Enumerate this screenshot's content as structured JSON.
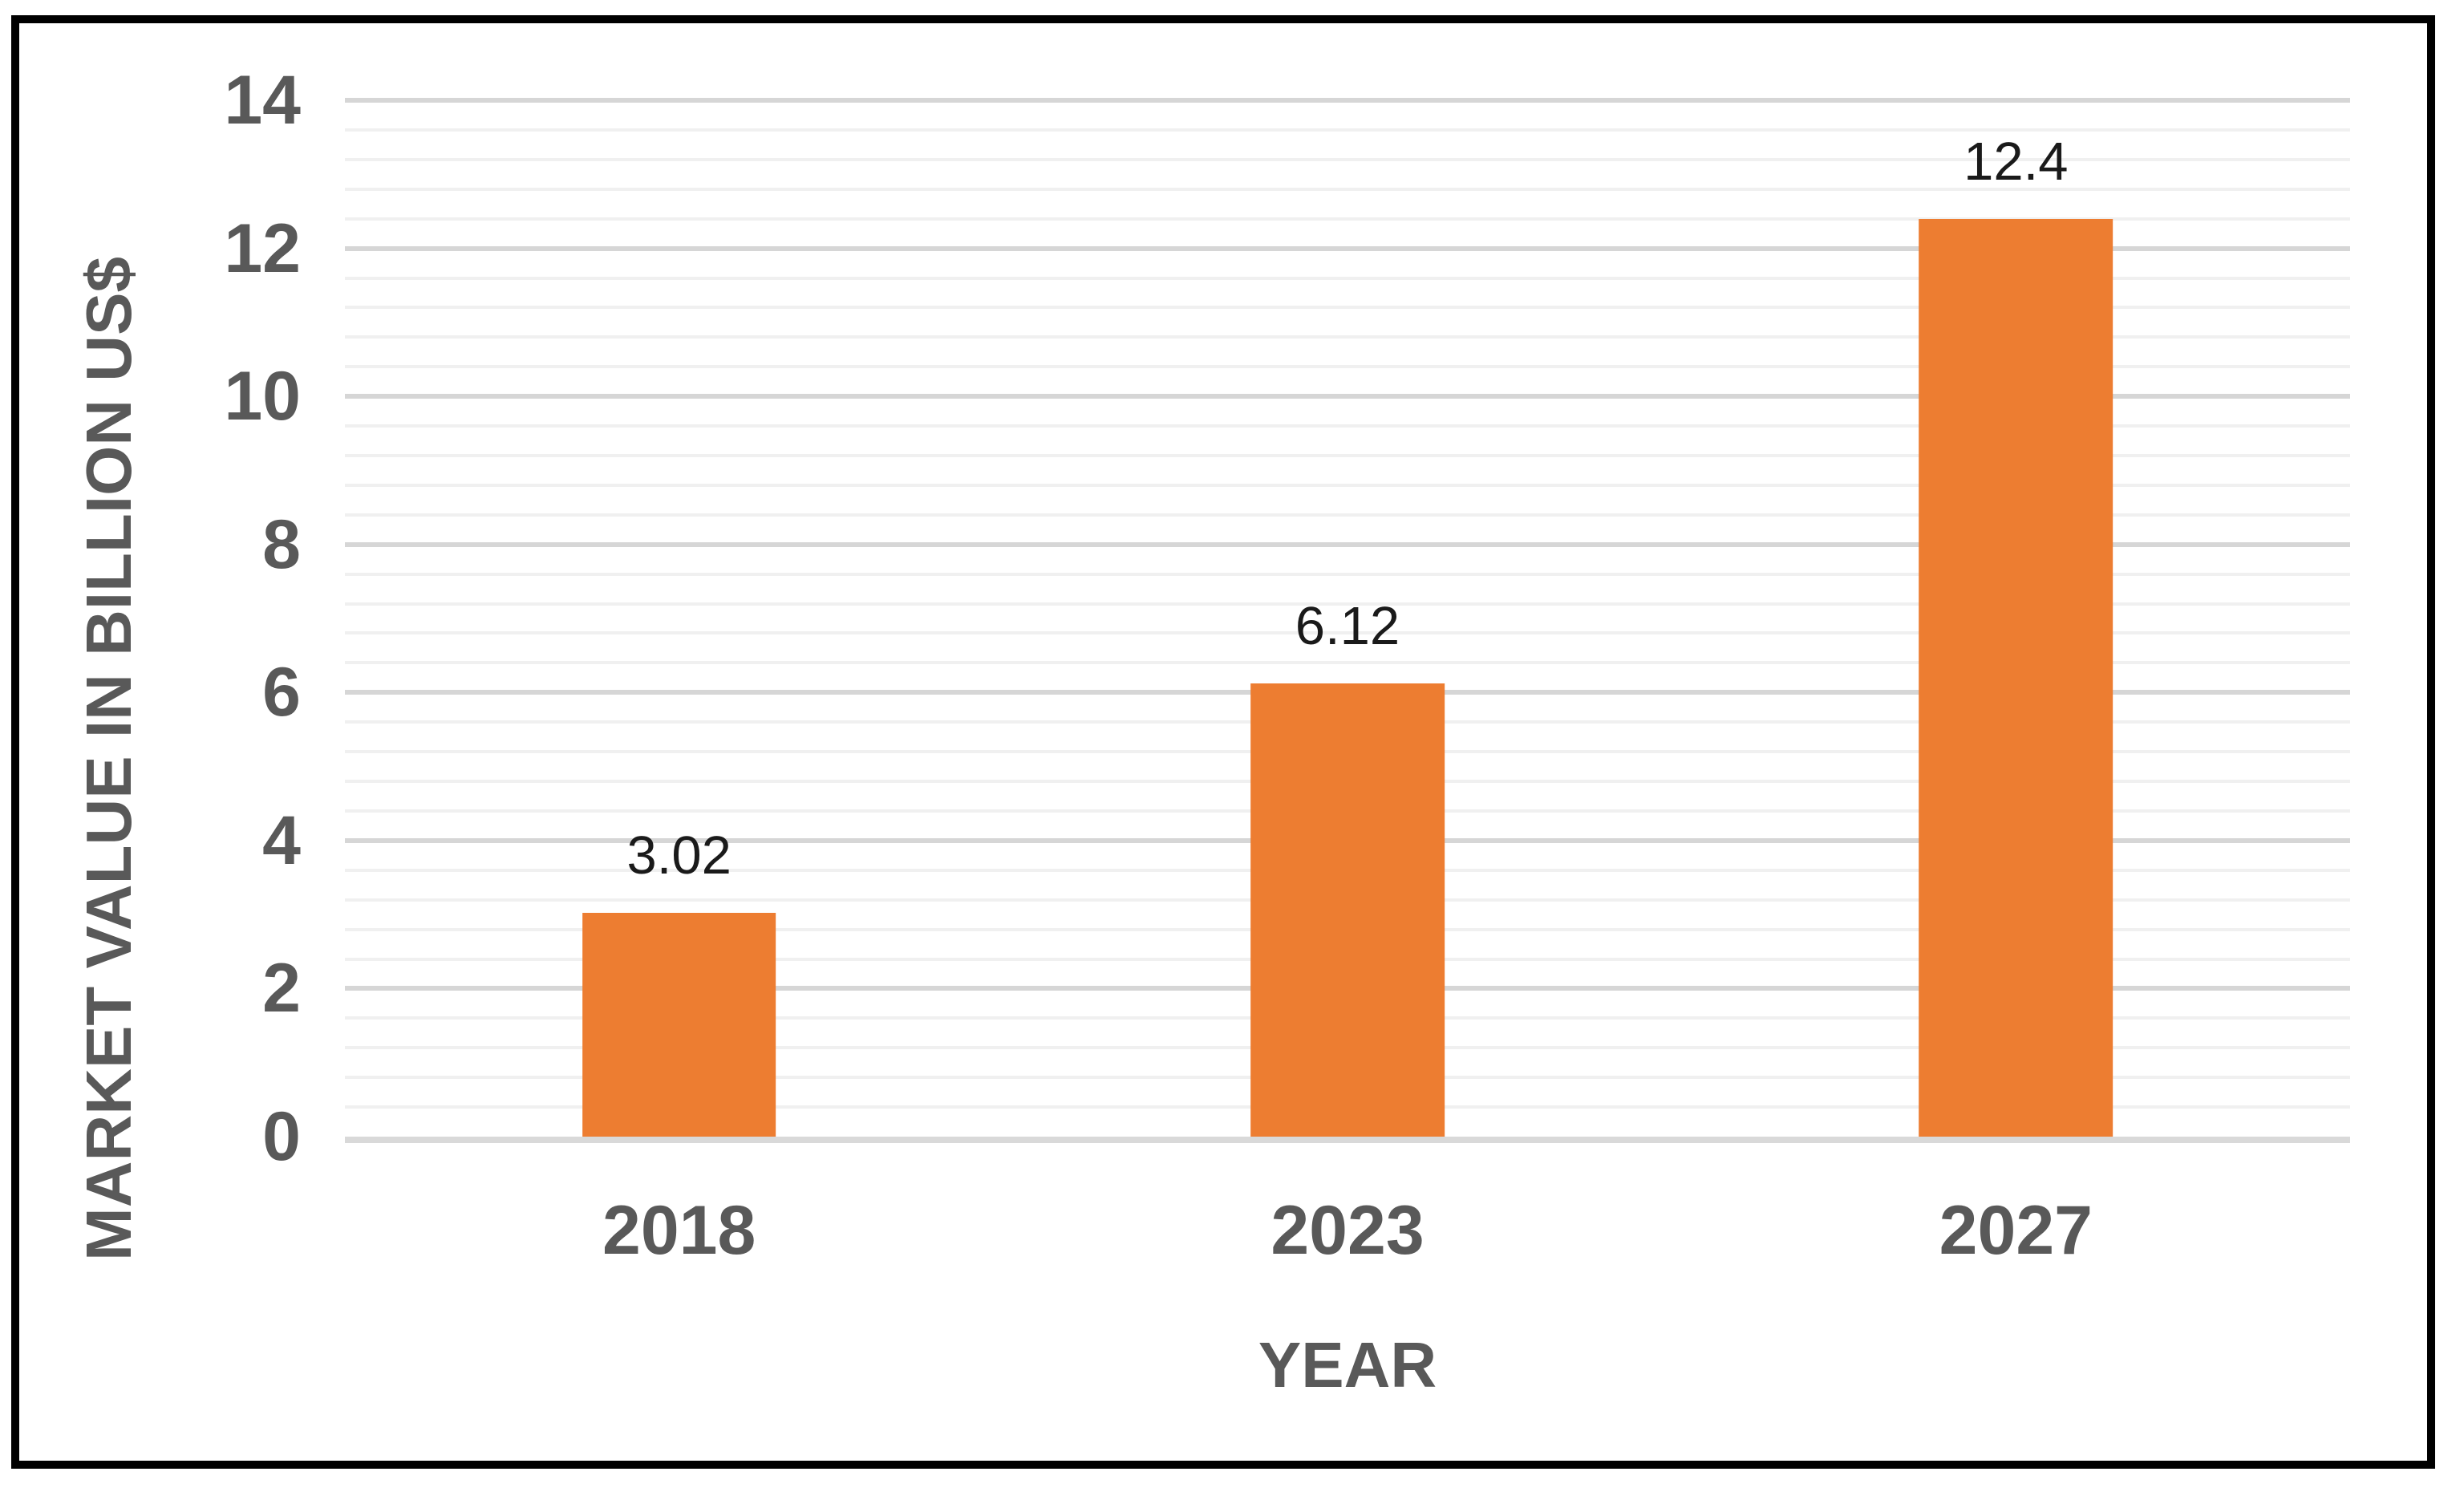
{
  "chart_data": {
    "type": "bar",
    "categories": [
      "2018",
      "2023",
      "2027"
    ],
    "values": [
      3.02,
      6.12,
      12.4
    ],
    "data_labels": [
      "3.02",
      "6.12",
      "12.4"
    ],
    "xlabel": "YEAR",
    "ylabel": "MARKET VALUE IN BILLION US$",
    "ylim": [
      0,
      14
    ],
    "y_major_unit": 2,
    "y_minor_unit": 0.4,
    "y_tick_labels": [
      "0",
      "2",
      "4",
      "6",
      "8",
      "10",
      "12",
      "14"
    ],
    "grid": "horizontal major and minor gridlines, legend off, no chart title",
    "colors": {
      "bar": "#ED7D31",
      "axis_text": "#595959",
      "data_label": "#1a1a1a",
      "grid_major": "#D6D6D6",
      "grid_minor": "#F0F0F0",
      "baseline": "#D9D9D9",
      "frame_border": "#000000",
      "background": "#FFFFFF"
    }
  }
}
